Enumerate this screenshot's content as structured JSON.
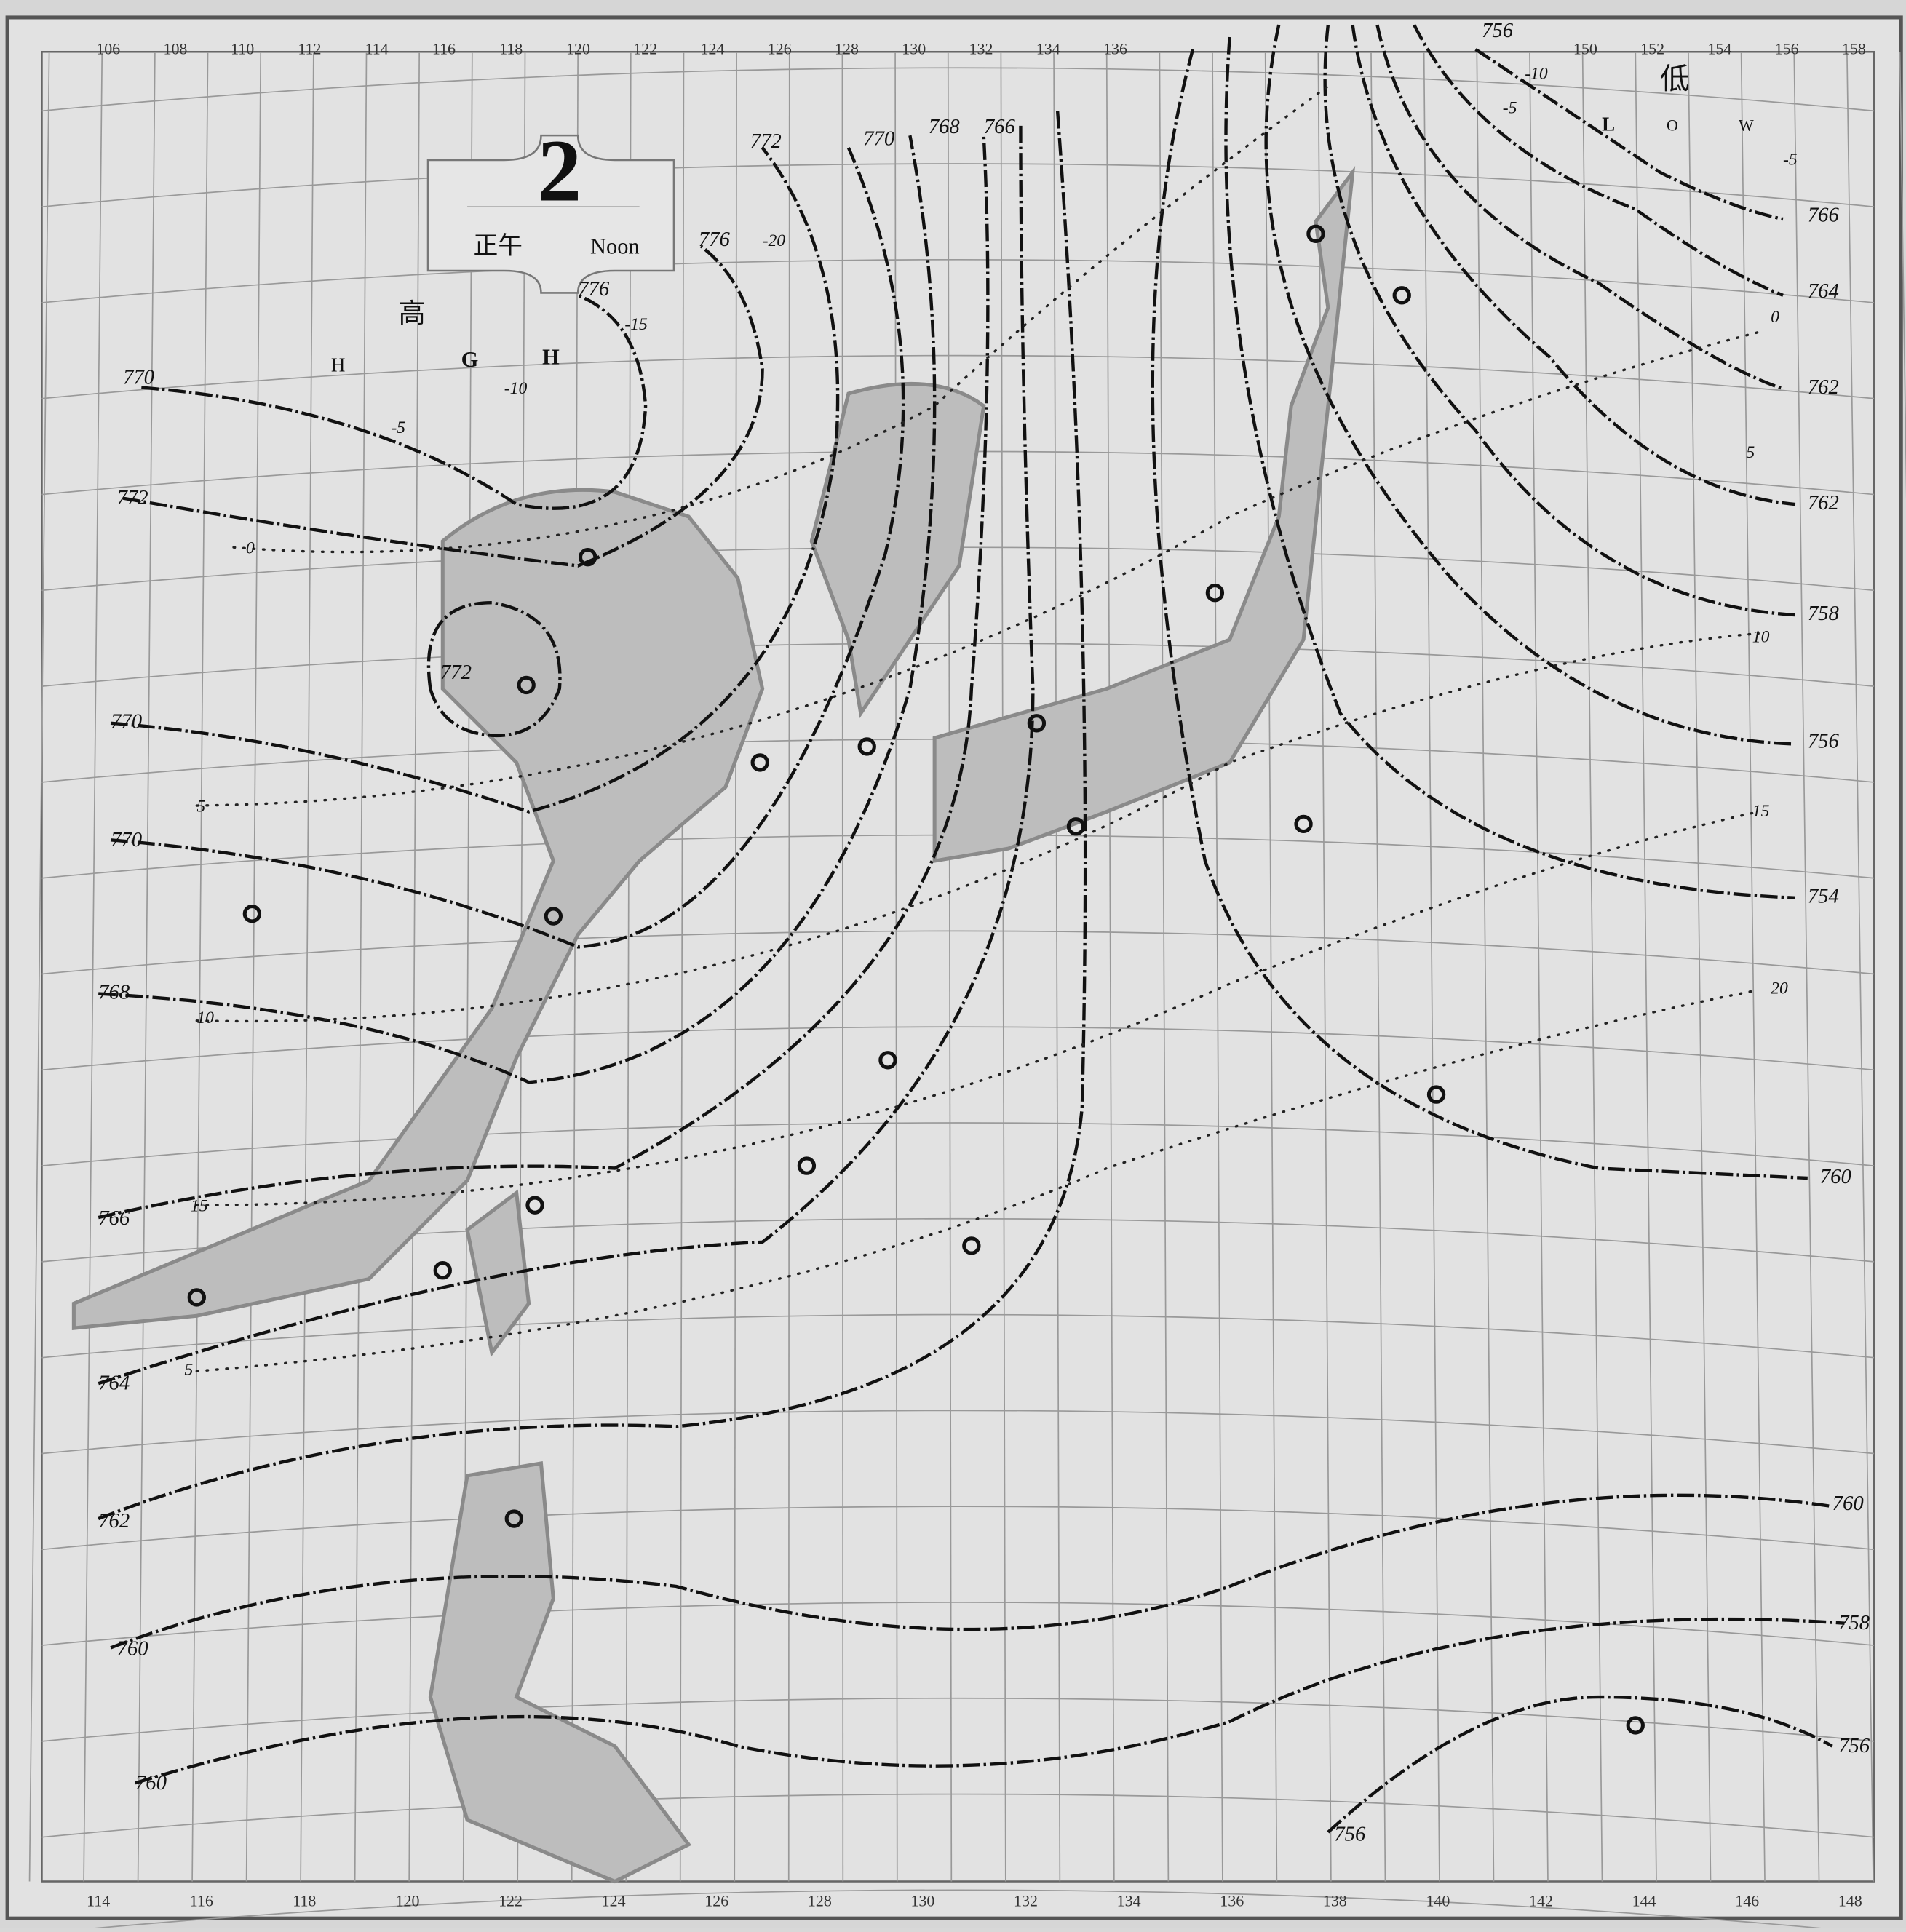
{
  "header": {
    "number": "2",
    "japanese": "正午",
    "english": "Noon"
  },
  "high": {
    "kanji": "高",
    "letters": [
      "H",
      "G",
      "H"
    ]
  },
  "low": {
    "kanji": "低",
    "letters": [
      "L",
      "O",
      "W"
    ]
  },
  "top_longitudes": [
    106,
    108,
    110,
    112,
    114,
    116,
    118,
    120,
    122,
    124,
    126,
    128,
    130,
    132,
    134,
    136,
    150,
    152,
    154,
    156,
    158
  ],
  "bottom_longitudes": [
    114,
    116,
    118,
    120,
    122,
    124,
    126,
    128,
    130,
    132,
    134,
    136,
    138,
    140,
    142,
    144,
    146,
    148
  ],
  "isobar_labels": [
    "772",
    "770",
    "768",
    "766",
    "776",
    "776",
    "770",
    "772",
    "770",
    "770",
    "768",
    "766",
    "764",
    "762",
    "760",
    "760",
    "766",
    "764",
    "762",
    "762",
    "758",
    "756",
    "754",
    "760",
    "760",
    "758",
    "756",
    "756",
    "756",
    "772"
  ],
  "temperature_labels": [
    "-20",
    "-15",
    "-10",
    "-5",
    "-5",
    "0",
    "-10",
    "5",
    "5",
    "10",
    "10",
    "15",
    "15",
    "20",
    "-5",
    "0",
    "5"
  ]
}
